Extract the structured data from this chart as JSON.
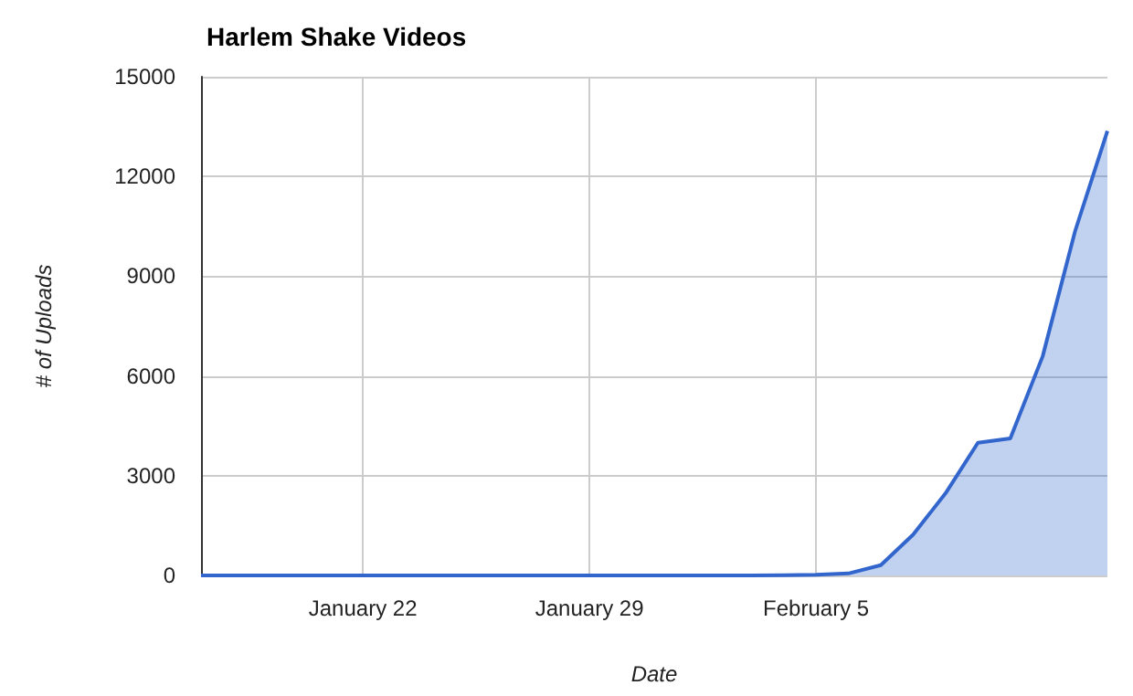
{
  "chart_data": {
    "type": "area",
    "title": "Harlem Shake Videos",
    "xlabel": "Date",
    "ylabel": "# of Uploads",
    "x": [
      "--01-17",
      "--01-18",
      "--01-19",
      "--01-20",
      "--01-21",
      "--01-22",
      "--01-23",
      "--01-24",
      "--01-25",
      "--01-26",
      "--01-27",
      "--01-28",
      "--01-29",
      "--01-30",
      "--01-31",
      "--02-01",
      "--02-02",
      "--02-03",
      "--02-04",
      "--02-05",
      "--02-06",
      "--02-07",
      "--02-08",
      "--02-09",
      "--02-10",
      "--02-11",
      "--02-12",
      "--02-13",
      "--02-14"
    ],
    "series": [
      {
        "color": "#3366cc",
        "values": [
          0,
          0,
          0,
          0,
          0,
          0,
          0,
          0,
          0,
          0,
          0,
          0,
          0,
          0,
          0,
          0,
          0,
          0,
          10,
          20,
          60,
          310,
          1230,
          2470,
          3990,
          4120,
          6590,
          10350,
          13370
        ]
      }
    ],
    "xlim": [
      "--01-17",
      "--02-14"
    ],
    "xticks": [
      {
        "value": "--01-22",
        "label": "January 22"
      },
      {
        "value": "--01-29",
        "label": "January 29"
      },
      {
        "value": "--02-05",
        "label": "February 5"
      }
    ],
    "ylim": [
      0,
      15000
    ],
    "yticks": [
      0,
      3000,
      6000,
      9000,
      12000,
      15000
    ],
    "grid": true
  }
}
